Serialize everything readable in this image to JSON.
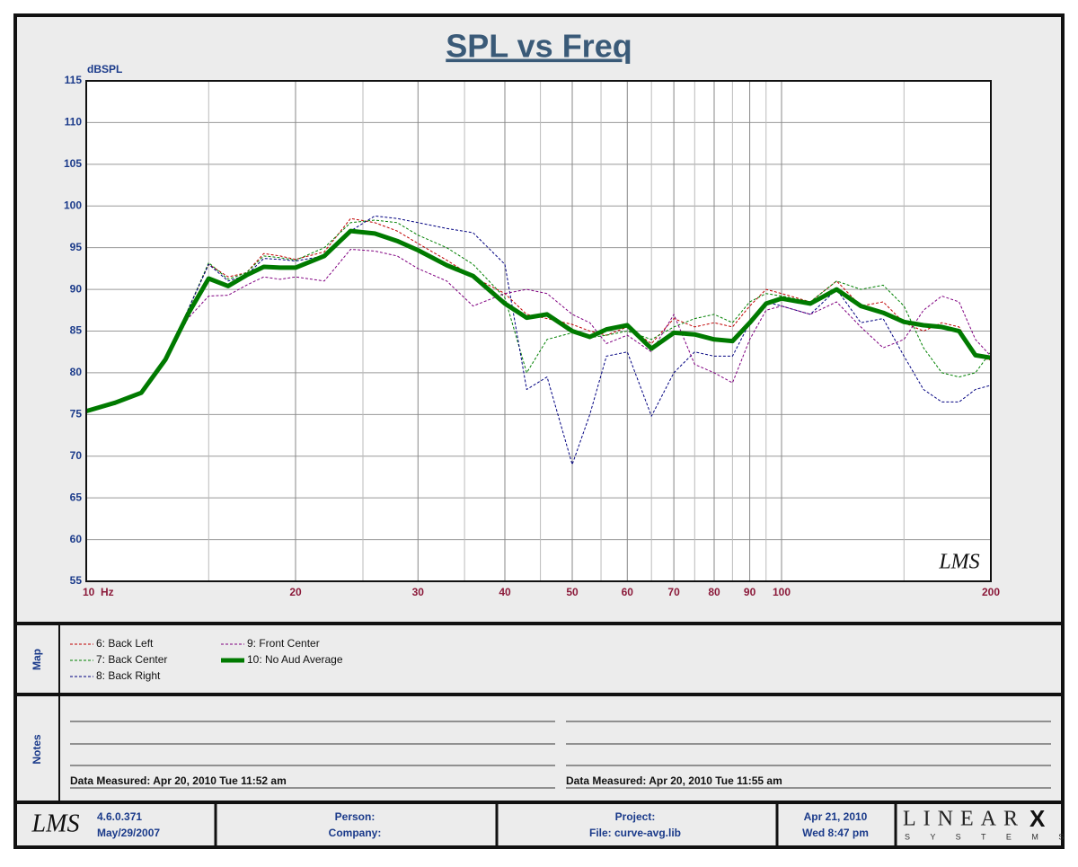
{
  "chart_data": {
    "type": "line",
    "title": "SPL vs Freq",
    "y_label": "dBSPL",
    "watermark": "LMS",
    "log_x": true,
    "grid": true,
    "x": [
      10,
      11,
      12,
      13,
      14,
      15,
      16,
      17,
      18,
      19,
      20,
      22,
      24,
      26,
      28,
      30,
      33,
      36,
      40,
      43,
      46,
      50,
      53,
      56,
      60,
      65,
      70,
      75,
      80,
      85,
      90,
      95,
      100,
      110,
      120,
      130,
      140,
      150,
      160,
      170,
      180,
      190,
      200
    ],
    "series": [
      {
        "name": "6: Back Left",
        "color": "#c00000",
        "style": "dashed",
        "width": 1,
        "values": [
          75.5,
          76.5,
          77.6,
          81.6,
          87.5,
          93,
          91.5,
          92,
          94.3,
          94,
          93.6,
          94.5,
          98.5,
          98,
          97,
          95.5,
          93.5,
          91.5,
          89.5,
          87,
          86.5,
          85.8,
          85,
          84.5,
          85.5,
          83.5,
          86.5,
          85.5,
          86,
          85.5,
          88,
          90,
          89.5,
          88.5,
          91,
          88,
          88.5,
          86,
          85,
          86,
          85.5,
          82,
          81.5
        ]
      },
      {
        "name": "7: Back Center",
        "color": "#008000",
        "style": "dashed",
        "width": 1,
        "values": [
          75.5,
          76.5,
          77.6,
          81.6,
          87.5,
          93.2,
          91.2,
          92,
          94,
          93.8,
          93.5,
          95,
          98,
          98.3,
          98,
          96.5,
          95,
          93,
          89,
          80,
          84,
          84.8,
          84.2,
          84.5,
          85,
          84,
          85.5,
          86.5,
          87,
          86,
          88.5,
          89.5,
          89.2,
          88.5,
          91,
          90,
          90.5,
          88,
          83,
          80,
          79.5,
          80,
          82.5
        ]
      },
      {
        "name": "8: Back Right",
        "color": "#000080",
        "style": "dashed",
        "width": 1,
        "values": [
          75.5,
          76.4,
          77.5,
          81.5,
          87.5,
          93,
          91,
          91.7,
          93.7,
          93.6,
          93.4,
          94,
          97,
          98.8,
          98.5,
          98,
          97.3,
          96.8,
          93,
          78,
          79.5,
          69,
          75,
          82,
          82.5,
          74.8,
          80,
          82.5,
          82,
          82,
          86,
          88.5,
          88,
          87,
          90,
          86,
          86.5,
          82,
          78,
          76.5,
          76.5,
          78,
          78.5
        ]
      },
      {
        "name": "9: Front Center",
        "color": "#800080",
        "style": "dashed",
        "width": 1,
        "values": [
          75.5,
          76.4,
          77.5,
          81.4,
          86.5,
          89.2,
          89.3,
          90.5,
          91.5,
          91.2,
          91.5,
          91,
          94.8,
          94.6,
          94,
          92.5,
          91,
          88,
          89.5,
          90,
          89.5,
          87,
          86,
          83.5,
          84.5,
          82.5,
          87,
          81,
          80,
          78.8,
          84,
          87.5,
          88,
          87,
          88.5,
          85.5,
          83,
          84,
          87.5,
          89.2,
          88.5,
          84,
          82
        ]
      },
      {
        "name": "10: No Aud Average",
        "color": "#007a00",
        "style": "solid",
        "width": 5,
        "values": [
          75.4,
          76.4,
          77.6,
          81.6,
          87,
          91.3,
          90.4,
          91.7,
          92.7,
          92.6,
          92.6,
          94,
          97,
          96.7,
          95.8,
          94.7,
          92.9,
          91.6,
          88.3,
          86.6,
          87,
          85,
          84.3,
          85.2,
          85.7,
          82.9,
          84.8,
          84.6,
          84,
          83.8,
          86,
          88.3,
          88.9,
          88.3,
          90,
          88,
          87.2,
          86.1,
          85.7,
          85.5,
          85,
          82.1,
          81.8
        ]
      }
    ],
    "xlim": [
      10,
      200
    ],
    "ylim": [
      55,
      115
    ],
    "xticks": [
      {
        "value": 10,
        "label": "10  Hz"
      },
      20,
      30,
      40,
      50,
      60,
      70,
      80,
      90,
      100,
      200
    ],
    "xminor": [
      15,
      25,
      35,
      45,
      55,
      65,
      75,
      85,
      95,
      150
    ],
    "yticks": [
      55,
      60,
      65,
      70,
      75,
      80,
      85,
      90,
      95,
      100,
      105,
      110,
      115
    ]
  },
  "map": {
    "label": "Map"
  },
  "notes": {
    "label": "Notes",
    "left": "Data Measured: Apr 20, 2010  Tue 11:52 am",
    "right": "Data Measured: Apr 20, 2010  Tue 11:55 am"
  },
  "footer": {
    "logo": "LMS",
    "version": "4.6.0.371",
    "version_date": "May/29/2007",
    "person": "Person:",
    "company": "Company:",
    "project": "Project:",
    "file": "File: curve-avg.lib",
    "date": "Apr 21, 2010",
    "time": "Wed  8:47 pm",
    "brand": "LINEAR",
    "brand_x": "X",
    "brand_sub": "S Y S T E M S"
  }
}
